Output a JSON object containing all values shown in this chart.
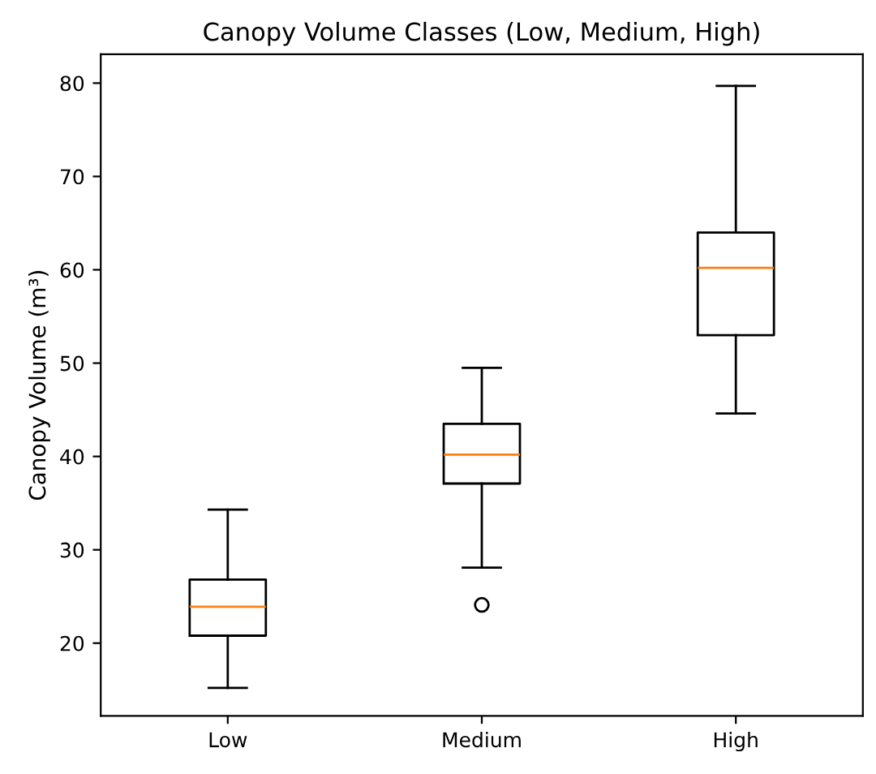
{
  "chart_data": {
    "type": "box",
    "title": "Canopy Volume Classes (Low, Medium, High)",
    "ylabel": "Canopy Volume (m³)",
    "categories": [
      "Low",
      "Medium",
      "High"
    ],
    "boxes": [
      {
        "low": 15.2,
        "q1": 20.8,
        "median": 23.9,
        "q3": 26.8,
        "high": 34.3
      },
      {
        "low": 28.1,
        "q1": 37.1,
        "median": 40.2,
        "q3": 43.5,
        "high": 49.5,
        "outliers": [
          24.1
        ]
      },
      {
        "low": 44.6,
        "q1": 53.0,
        "median": 60.2,
        "q3": 64.0,
        "high": 79.7
      }
    ],
    "color": "#000000",
    "ylim": [
      12.2,
      83.1
    ],
    "yticks": [
      20,
      30,
      40,
      50,
      60,
      70,
      80
    ],
    "grid": false
  }
}
